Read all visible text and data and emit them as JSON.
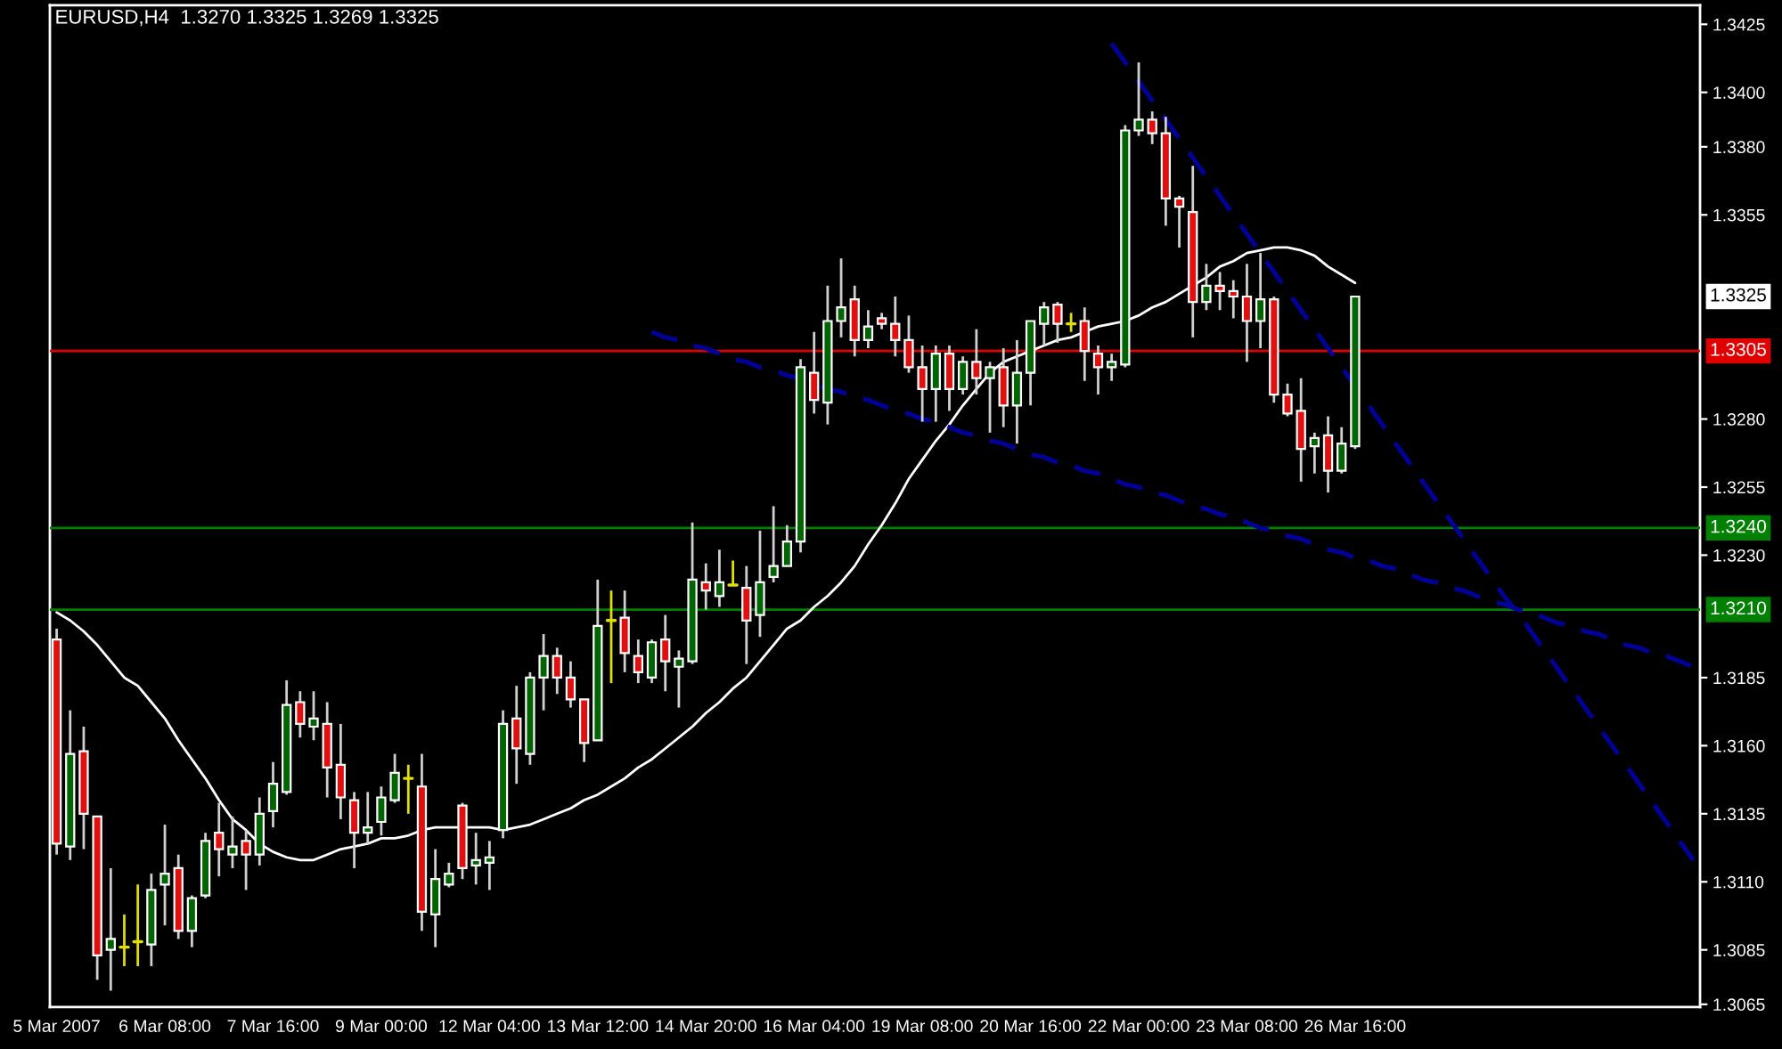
{
  "chart_data": {
    "type": "candlestick",
    "title": "EURUSD,H4  1.3270 1.3325 1.3269 1.3325",
    "categories": [
      "5 Mar 2007",
      null,
      null,
      null,
      null,
      null,
      null,
      null,
      "6 Mar 08:00",
      null,
      null,
      null,
      null,
      null,
      null,
      null,
      "7 Mar 16:00",
      null,
      null,
      null,
      null,
      null,
      null,
      null,
      "9 Mar 00:00",
      null,
      null,
      null,
      null,
      null,
      null,
      null,
      "12 Mar 04:00",
      null,
      null,
      null,
      null,
      null,
      null,
      null,
      "13 Mar 12:00",
      null,
      null,
      null,
      null,
      null,
      null,
      null,
      "14 Mar 20:00",
      null,
      null,
      null,
      null,
      null,
      null,
      null,
      "16 Mar 04:00",
      null,
      null,
      null,
      null,
      null,
      null,
      null,
      "19 Mar 08:00",
      null,
      null,
      null,
      null,
      null,
      null,
      null,
      "20 Mar 16:00",
      null,
      null,
      null,
      null,
      null,
      null,
      null,
      "22 Mar 00:00",
      null,
      null,
      null,
      null,
      null,
      null,
      null,
      "23 Mar 08:00",
      null,
      null,
      null,
      null,
      null,
      null,
      null,
      "26 Mar 16:00",
      null,
      null,
      null,
      null,
      null,
      null,
      null,
      null,
      null,
      null,
      null,
      null,
      null,
      null,
      null,
      null,
      null,
      null,
      null,
      null,
      null,
      null,
      null,
      null,
      null
    ],
    "ohlc": [
      [
        1.3199,
        1.3203,
        1.312,
        1.3124
      ],
      [
        1.3123,
        1.3173,
        1.3118,
        1.3157
      ],
      [
        1.3158,
        1.3167,
        1.3122,
        1.3135
      ],
      [
        1.3134,
        1.3134,
        1.3074,
        1.3083
      ],
      [
        1.3085,
        1.3115,
        1.307,
        1.3089
      ],
      [
        1.3086,
        1.3098,
        1.3079,
        1.3086
      ],
      [
        1.3088,
        1.3109,
        1.3079,
        1.3088
      ],
      [
        1.3087,
        1.3113,
        1.3079,
        1.3107
      ],
      [
        1.3109,
        1.3131,
        1.3094,
        1.3113
      ],
      [
        1.3115,
        1.312,
        1.3089,
        1.3092
      ],
      [
        1.3092,
        1.3105,
        1.3086,
        1.3104
      ],
      [
        1.3105,
        1.3128,
        1.3104,
        1.3125
      ],
      [
        1.3128,
        1.3139,
        1.3112,
        1.3122
      ],
      [
        1.312,
        1.3134,
        1.3115,
        1.3123
      ],
      [
        1.3125,
        1.3129,
        1.3107,
        1.312
      ],
      [
        1.312,
        1.3141,
        1.3116,
        1.3135
      ],
      [
        1.3136,
        1.3154,
        1.313,
        1.3146
      ],
      [
        1.3143,
        1.3184,
        1.3142,
        1.3175
      ],
      [
        1.3176,
        1.318,
        1.3163,
        1.3168
      ],
      [
        1.3167,
        1.318,
        1.3162,
        1.317
      ],
      [
        1.3168,
        1.3176,
        1.3141,
        1.3152
      ],
      [
        1.3153,
        1.3168,
        1.3133,
        1.3141
      ],
      [
        1.314,
        1.3143,
        1.3115,
        1.3128
      ],
      [
        1.3128,
        1.3143,
        1.3124,
        1.313
      ],
      [
        1.3132,
        1.3145,
        1.3127,
        1.3141
      ],
      [
        1.314,
        1.3157,
        1.3139,
        1.315
      ],
      [
        1.3148,
        1.3153,
        1.3135,
        1.3148
      ],
      [
        1.3145,
        1.3157,
        1.3092,
        1.3099
      ],
      [
        1.3098,
        1.3122,
        1.3086,
        1.3111
      ],
      [
        1.3109,
        1.3117,
        1.3108,
        1.3113
      ],
      [
        1.3138,
        1.3139,
        1.3111,
        1.3115
      ],
      [
        1.3116,
        1.3128,
        1.3109,
        1.3118
      ],
      [
        1.3117,
        1.3125,
        1.3107,
        1.3119
      ],
      [
        1.3129,
        1.3173,
        1.3126,
        1.3168
      ],
      [
        1.317,
        1.3182,
        1.3146,
        1.3159
      ],
      [
        1.3157,
        1.3187,
        1.3153,
        1.3185
      ],
      [
        1.3185,
        1.3201,
        1.3173,
        1.3193
      ],
      [
        1.3193,
        1.3196,
        1.3179,
        1.3185
      ],
      [
        1.3185,
        1.3191,
        1.3174,
        1.3177
      ],
      [
        1.3177,
        1.3177,
        1.3154,
        1.3161
      ],
      [
        1.3162,
        1.3221,
        1.3162,
        1.3204
      ],
      [
        1.3206,
        1.3217,
        1.3183,
        1.3206
      ],
      [
        1.3207,
        1.3217,
        1.3187,
        1.3194
      ],
      [
        1.3193,
        1.3199,
        1.3183,
        1.3187
      ],
      [
        1.3185,
        1.3199,
        1.3183,
        1.3198
      ],
      [
        1.3199,
        1.3208,
        1.318,
        1.3191
      ],
      [
        1.3189,
        1.3195,
        1.3174,
        1.3192
      ],
      [
        1.3191,
        1.3242,
        1.319,
        1.3221
      ],
      [
        1.322,
        1.3227,
        1.321,
        1.3217
      ],
      [
        1.3215,
        1.3232,
        1.3211,
        1.322
      ],
      [
        1.3219,
        1.3228,
        1.3219,
        1.3219
      ],
      [
        1.3218,
        1.3226,
        1.319,
        1.3206
      ],
      [
        1.3208,
        1.3239,
        1.32,
        1.322
      ],
      [
        1.3222,
        1.3248,
        1.322,
        1.3226
      ],
      [
        1.3226,
        1.3241,
        1.3226,
        1.3235
      ],
      [
        1.3235,
        1.3302,
        1.3231,
        1.3299
      ],
      [
        1.3297,
        1.3312,
        1.3282,
        1.3287
      ],
      [
        1.3286,
        1.3329,
        1.3278,
        1.3316
      ],
      [
        1.3316,
        1.3339,
        1.331,
        1.3321
      ],
      [
        1.3324,
        1.3329,
        1.3303,
        1.3309
      ],
      [
        1.3309,
        1.332,
        1.3306,
        1.3314
      ],
      [
        1.3317,
        1.3319,
        1.3313,
        1.3315
      ],
      [
        1.3315,
        1.3325,
        1.3303,
        1.3309
      ],
      [
        1.3309,
        1.3318,
        1.3297,
        1.3299
      ],
      [
        1.3299,
        1.3307,
        1.3279,
        1.3291
      ],
      [
        1.3291,
        1.3307,
        1.3279,
        1.3304
      ],
      [
        1.3304,
        1.3307,
        1.3283,
        1.3291
      ],
      [
        1.3291,
        1.3303,
        1.3289,
        1.3301
      ],
      [
        1.3301,
        1.3313,
        1.3289,
        1.3295
      ],
      [
        1.3295,
        1.3301,
        1.3275,
        1.3299
      ],
      [
        1.3299,
        1.3306,
        1.3277,
        1.3285
      ],
      [
        1.3285,
        1.3309,
        1.3271,
        1.3297
      ],
      [
        1.3297,
        1.3316,
        1.3285,
        1.3316
      ],
      [
        1.3315,
        1.3323,
        1.3307,
        1.3321
      ],
      [
        1.3322,
        1.3323,
        1.3308,
        1.3315
      ],
      [
        1.3315,
        1.3319,
        1.3312,
        1.3315
      ],
      [
        1.3316,
        1.3321,
        1.3294,
        1.3305
      ],
      [
        1.3304,
        1.3307,
        1.3289,
        1.3299
      ],
      [
        1.3299,
        1.3304,
        1.3294,
        1.3301
      ],
      [
        1.33,
        1.3388,
        1.3299,
        1.3386
      ],
      [
        1.3386,
        1.3411,
        1.3384,
        1.339
      ],
      [
        1.339,
        1.3393,
        1.3381,
        1.3385
      ],
      [
        1.3385,
        1.3391,
        1.3351,
        1.3361
      ],
      [
        1.3361,
        1.3362,
        1.3343,
        1.3358
      ],
      [
        1.3356,
        1.3373,
        1.331,
        1.3323
      ],
      [
        1.3323,
        1.3337,
        1.332,
        1.3329
      ],
      [
        1.3329,
        1.3334,
        1.332,
        1.3327
      ],
      [
        1.3327,
        1.3331,
        1.3317,
        1.3325
      ],
      [
        1.3325,
        1.3337,
        1.3301,
        1.3316
      ],
      [
        1.3316,
        1.3341,
        1.3306,
        1.3324
      ],
      [
        1.3324,
        1.3325,
        1.3286,
        1.3289
      ],
      [
        1.3289,
        1.3293,
        1.3281,
        1.3282
      ],
      [
        1.3283,
        1.3295,
        1.3257,
        1.3269
      ],
      [
        1.327,
        1.3275,
        1.326,
        1.3273
      ],
      [
        1.3274,
        1.3281,
        1.3253,
        1.3261
      ],
      [
        1.3261,
        1.3277,
        1.326,
        1.3271
      ],
      [
        1.327,
        1.3325,
        1.3269,
        1.3325
      ],
      null,
      null,
      null,
      null,
      null,
      null,
      null,
      null,
      null,
      null,
      null,
      null,
      null,
      null,
      null,
      null,
      null,
      null,
      null,
      null,
      null,
      null,
      null,
      null,
      null
    ],
    "colors": [
      "#e01010",
      "#006400",
      "#e01010",
      "#e01010",
      "#006400",
      "#e0e000",
      "#e0e000",
      "#006400",
      "#006400",
      "#e01010",
      "#006400",
      "#006400",
      "#e01010",
      "#006400",
      "#e01010",
      "#006400",
      "#006400",
      "#006400",
      "#e01010",
      "#006400",
      "#e01010",
      "#e01010",
      "#e01010",
      "#006400",
      "#006400",
      "#006400",
      "#e0e000",
      "#e01010",
      "#006400",
      "#006400",
      "#e01010",
      "#006400",
      "#006400",
      "#006400",
      "#e01010",
      "#006400",
      "#006400",
      "#e01010",
      "#e01010",
      "#e01010",
      "#006400",
      "#e0e000",
      "#e01010",
      "#e01010",
      "#006400",
      "#e01010",
      "#006400",
      "#006400",
      "#e01010",
      "#006400",
      "#e0e000",
      "#e01010",
      "#006400",
      "#006400",
      "#006400",
      "#006400",
      "#e01010",
      "#006400",
      "#006400",
      "#e01010",
      "#006400",
      "#e01010",
      "#e01010",
      "#e01010",
      "#e01010",
      "#006400",
      "#e01010",
      "#006400",
      "#e01010",
      "#006400",
      "#e01010",
      "#006400",
      "#006400",
      "#006400",
      "#e01010",
      "#e0e000",
      "#e01010",
      "#e01010",
      "#006400",
      "#006400",
      "#006400",
      "#e01010",
      "#e01010",
      "#e01010",
      "#e01010",
      "#006400",
      "#e01010",
      "#e01010",
      "#e01010",
      "#006400",
      "#e01010",
      "#e01010",
      "#e01010",
      "#006400",
      "#e01010",
      "#006400",
      "#006400",
      null,
      null,
      null,
      null,
      null,
      null,
      null,
      null,
      null,
      null,
      null,
      null,
      null,
      null,
      null,
      null,
      null,
      null,
      null,
      null,
      null,
      null,
      null,
      null,
      null
    ],
    "series": [
      {
        "type": "line",
        "color": "#ffffff",
        "values": [
          1.3209,
          1.3206,
          1.3202,
          1.3197,
          1.3191,
          1.3185,
          1.3182,
          1.3176,
          1.317,
          1.3162,
          1.3155,
          1.3148,
          1.314,
          1.3133,
          1.3129,
          1.3124,
          1.3121,
          1.3119,
          1.3118,
          1.3118,
          1.312,
          1.3122,
          1.3123,
          1.3124,
          1.3126,
          1.3126,
          1.3127,
          1.3129,
          1.313,
          1.313,
          1.313,
          1.313,
          1.313,
          1.3129,
          1.313,
          1.3131,
          1.3133,
          1.3135,
          1.3137,
          1.314,
          1.3142,
          1.3145,
          1.3148,
          1.3152,
          1.3155,
          1.3159,
          1.3163,
          1.3167,
          1.3172,
          1.3176,
          1.3181,
          1.3185,
          1.3191,
          1.3197,
          1.3203,
          1.3206,
          1.3211,
          1.3215,
          1.322,
          1.3226,
          1.3234,
          1.3241,
          1.3249,
          1.3258,
          1.3265,
          1.3272,
          1.3278,
          1.3285,
          1.3291,
          1.3297,
          1.3301,
          1.3303,
          1.3305,
          1.3307,
          1.3309,
          1.331,
          1.3312,
          1.3314,
          1.3315,
          1.3316,
          1.3318,
          1.3321,
          1.3323,
          1.3326,
          1.3329,
          1.3332,
          1.3336,
          1.3338,
          1.3341,
          1.3342,
          1.3343,
          1.3343,
          1.3342,
          1.334,
          1.3336,
          1.3333,
          1.333,
          null,
          null,
          null,
          null,
          null,
          null,
          null,
          null,
          null,
          null,
          null,
          null,
          null,
          null,
          null,
          null,
          null,
          null,
          null,
          null,
          null,
          null,
          null,
          null,
          null
        ]
      },
      {
        "type": "line",
        "color": "#000099",
        "line_style": "dashed",
        "values": [
          null,
          null,
          null,
          null,
          null,
          null,
          null,
          null,
          null,
          null,
          null,
          null,
          null,
          null,
          null,
          null,
          null,
          null,
          null,
          null,
          null,
          null,
          null,
          null,
          null,
          null,
          null,
          null,
          null,
          null,
          null,
          null,
          null,
          null,
          null,
          null,
          null,
          null,
          null,
          null,
          null,
          null,
          null,
          null,
          null,
          null,
          null,
          null,
          null,
          null,
          null,
          null,
          null,
          null,
          null,
          null,
          null,
          null,
          null,
          null,
          null,
          null,
          null,
          null,
          null,
          null,
          null,
          null,
          null,
          null,
          null,
          null,
          null,
          null,
          null,
          null,
          null,
          null,
          1.3418,
          1.3411,
          1.3404,
          1.3397,
          1.339,
          1.3383,
          1.3376,
          1.3369,
          1.3362,
          1.3355,
          1.3348,
          1.3341,
          1.3334,
          1.3327,
          1.332,
          1.3313,
          1.3306,
          1.3299,
          1.3292,
          1.3285,
          1.3278,
          1.3271,
          1.3264,
          1.3257,
          1.325,
          1.3243,
          1.3236,
          1.3229,
          1.3222,
          1.3215,
          1.3209,
          1.3202,
          1.3195,
          1.3188,
          1.3181,
          1.3174,
          1.3167,
          1.316,
          1.3153,
          1.3146,
          1.3139,
          1.3132,
          1.3125,
          1.3118
        ]
      },
      {
        "type": "line",
        "color": "#000099",
        "line_style": "dashed",
        "values": [
          null,
          null,
          null,
          null,
          null,
          null,
          null,
          null,
          null,
          null,
          null,
          null,
          null,
          null,
          null,
          null,
          null,
          null,
          null,
          null,
          null,
          null,
          null,
          null,
          null,
          null,
          null,
          null,
          null,
          null,
          null,
          null,
          null,
          null,
          null,
          null,
          null,
          null,
          null,
          null,
          null,
          null,
          null,
          null,
          1.3312,
          1.331,
          1.3309,
          1.3307,
          1.3306,
          1.3304,
          1.3302,
          1.3301,
          1.3299,
          1.3298,
          1.3296,
          1.3295,
          1.3293,
          1.3291,
          1.329,
          1.3288,
          1.3287,
          1.3285,
          1.3283,
          1.3282,
          1.328,
          1.3279,
          1.3277,
          1.3275,
          1.3274,
          1.3272,
          1.3271,
          1.3269,
          1.3267,
          1.3266,
          1.3264,
          1.3263,
          1.3261,
          1.326,
          1.3258,
          1.3256,
          1.3255,
          1.3253,
          1.3252,
          1.325,
          1.3248,
          1.3247,
          1.3245,
          1.3244,
          1.3242,
          1.324,
          1.3239,
          1.3237,
          1.3236,
          1.3234,
          1.3232,
          1.3231,
          1.3229,
          1.3228,
          1.3226,
          1.3225,
          1.3223,
          1.3221,
          1.322,
          1.3218,
          1.3217,
          1.3215,
          1.3213,
          1.3212,
          1.321,
          1.3209,
          1.3207,
          1.3205,
          1.3204,
          1.3202,
          1.3201,
          1.3199,
          1.3197,
          1.3196,
          1.3194,
          1.3193,
          1.3191,
          1.3189
        ]
      }
    ],
    "ylim": [
      1.3064,
      1.3432
    ],
    "yticks": [
      {
        "value": 1.3425,
        "label": "1.3425"
      },
      {
        "value": 1.34,
        "label": "1.3400"
      },
      {
        "value": 1.338,
        "label": "1.3380"
      },
      {
        "value": 1.3355,
        "label": "1.3355"
      },
      {
        "value": 1.328,
        "label": "1.3280"
      },
      {
        "value": 1.3255,
        "label": "1.3255"
      },
      {
        "value": 1.323,
        "label": "1.3230"
      },
      {
        "value": 1.3185,
        "label": "1.3185"
      },
      {
        "value": 1.316,
        "label": "1.3160"
      },
      {
        "value": 1.3135,
        "label": "1.3135"
      },
      {
        "value": 1.311,
        "label": "1.3110"
      },
      {
        "value": 1.3085,
        "label": "1.3085"
      },
      {
        "value": 1.3065,
        "label": "1.3065"
      }
    ],
    "ref_lines": [
      {
        "axis": "y",
        "value": 1.3305,
        "label": "1.3305",
        "color": "#e00000"
      },
      {
        "axis": "y",
        "value": 1.324,
        "label": "1.3240",
        "color": "#008000"
      },
      {
        "axis": "y",
        "value": 1.321,
        "label": "1.3210",
        "color": "#008000"
      }
    ],
    "annotations": [
      "1.3325"
    ],
    "grid": false,
    "legend": false
  }
}
